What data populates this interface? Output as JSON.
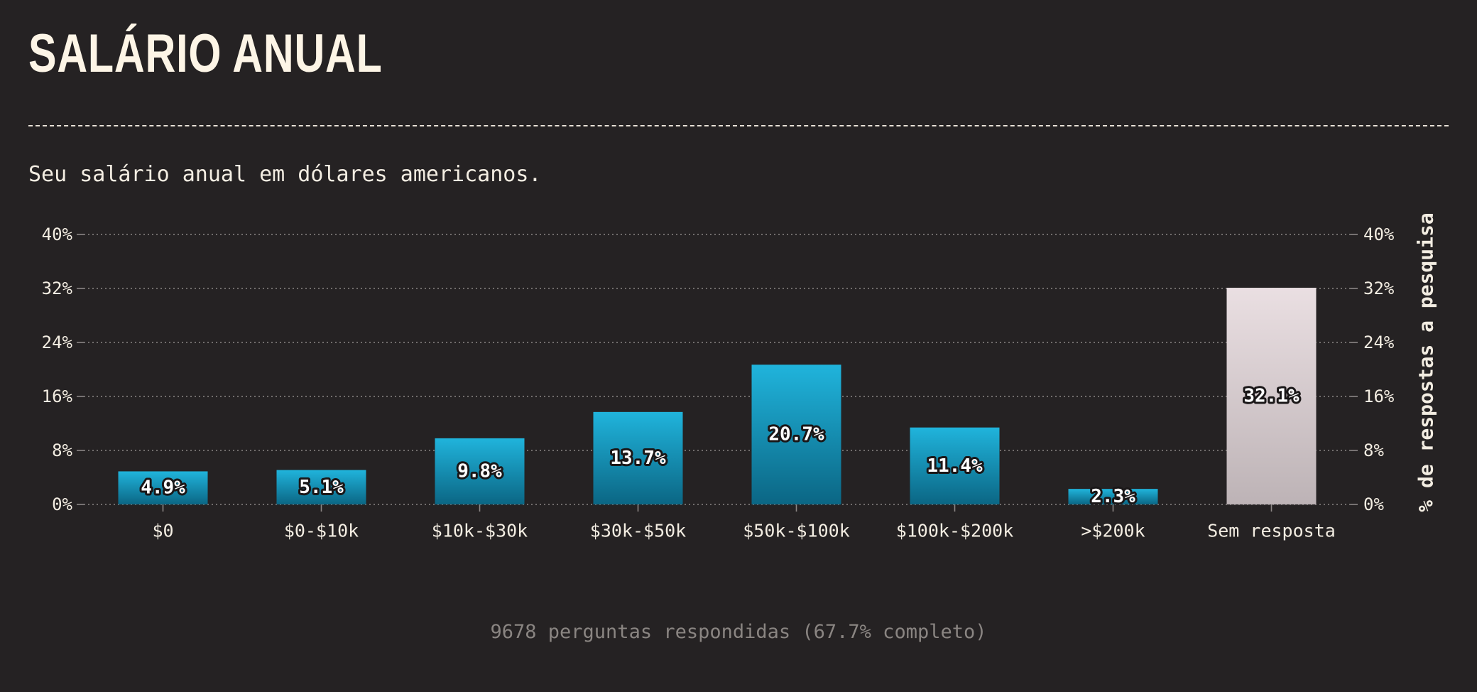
{
  "title": "SALÁRIO ANUAL",
  "subtitle": "Seu salário anual em dólares americanos.",
  "footer": "9678 perguntas respondidas (67.7% completo)",
  "chart_data": {
    "type": "bar",
    "categories": [
      "$0",
      "$0-$10k",
      "$10k-$30k",
      "$30k-$50k",
      "$50k-$100k",
      "$100k-$200k",
      ">$200k",
      "Sem resposta"
    ],
    "values": [
      4.9,
      5.1,
      9.8,
      13.7,
      20.7,
      11.4,
      2.3,
      32.1
    ],
    "value_labels": [
      "4.9%",
      "5.1%",
      "9.8%",
      "13.7%",
      "20.7%",
      "11.4%",
      "2.3%",
      "32.1%"
    ],
    "highlight_category": "Sem resposta",
    "ylabel": "% de respostas a pesquisa",
    "ylim": [
      0,
      40
    ],
    "yticks": [
      0,
      8,
      16,
      24,
      32,
      40
    ],
    "ytick_labels": [
      "0%",
      "8%",
      "16%",
      "24%",
      "32%",
      "40%"
    ],
    "grid": true,
    "colors": {
      "bar_top": "#20b4dc",
      "bar_bottom": "#0b6684",
      "highlight_top": "#eadfe2",
      "highlight_bottom": "#bdb3b6",
      "grid": "#8c8786",
      "text": "#f3ede2"
    }
  }
}
